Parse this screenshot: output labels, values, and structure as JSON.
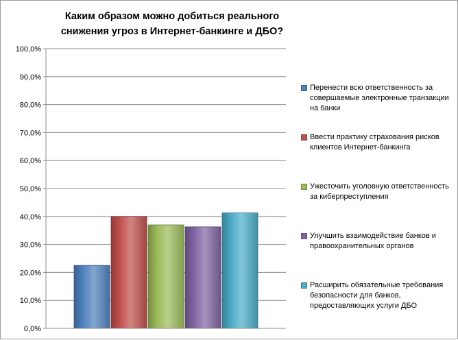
{
  "chart_data": {
    "type": "bar",
    "title": "Каким образом можно добиться реального снижения угроз в Интернет-банкинге и ДБО?",
    "xlabel": "",
    "ylabel": "",
    "ylim": [
      0,
      100
    ],
    "yticks": [
      "0,0%",
      "10,0%",
      "20,0%",
      "30,0%",
      "40,0%",
      "50,0%",
      "60,0%",
      "70,0%",
      "80,0%",
      "90,0%",
      "100,0%"
    ],
    "grid": true,
    "legend_position": "right",
    "series": [
      {
        "name": "Перенести всю ответственность за совершаемые электронные транзакции на банки",
        "values": [
          22.5
        ],
        "color": "#4f81bd"
      },
      {
        "name": "Ввести практику страхования рисков клиентов Интернет-банкинга",
        "values": [
          40.0
        ],
        "color": "#c0504d"
      },
      {
        "name": "Ужесточить уголовную ответственность за киберпреступления",
        "values": [
          37.0
        ],
        "color": "#9bbb59"
      },
      {
        "name": "Улучшить взаимодействие банков и правоохранительных органов",
        "values": [
          36.3
        ],
        "color": "#8064a2"
      },
      {
        "name": "Расширить обязательные требования безопасности для банков, предоставляющих услуги ДБО",
        "values": [
          41.3
        ],
        "color": "#4bacc6"
      }
    ]
  }
}
